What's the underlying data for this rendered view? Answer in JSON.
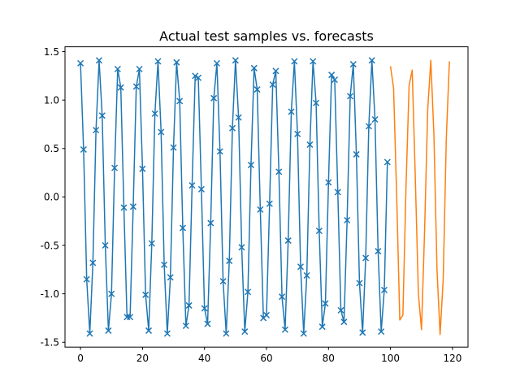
{
  "chart_data": {
    "type": "line",
    "title": "Actual test samples vs. forecasts",
    "xlabel": "",
    "ylabel": "",
    "xlim": [
      -5,
      125
    ],
    "ylim": [
      -1.55,
      1.55
    ],
    "xticks": [
      0,
      20,
      40,
      60,
      80,
      100,
      120
    ],
    "yticks": [
      -1.5,
      -1.0,
      -0.5,
      0.0,
      0.5,
      1.0,
      1.5
    ],
    "ytick_labels": [
      "-1.5",
      "-1.0",
      "-0.5",
      "0.0",
      "0.5",
      "1.0",
      "1.5"
    ],
    "grid": false,
    "legend": "none",
    "series": [
      {
        "color": "#1f77b4",
        "marker": "x",
        "x": [
          0,
          1,
          2,
          3,
          4,
          5,
          6,
          7,
          8,
          9,
          10,
          11,
          12,
          13,
          14,
          15,
          16,
          17,
          18,
          19,
          20,
          21,
          22,
          23,
          24,
          25,
          26,
          27,
          28,
          29,
          30,
          31,
          32,
          33,
          34,
          35,
          36,
          37,
          38,
          39,
          40,
          41,
          42,
          43,
          44,
          45,
          46,
          47,
          48,
          49,
          50,
          51,
          52,
          53,
          54,
          55,
          56,
          57,
          58,
          59,
          60,
          61,
          62,
          63,
          64,
          65,
          66,
          67,
          68,
          69,
          70,
          71,
          72,
          73,
          74,
          75,
          76,
          77,
          78,
          79,
          80,
          81,
          82,
          83,
          84,
          85,
          86,
          87,
          88,
          89,
          90,
          91,
          92,
          93,
          94,
          95,
          96,
          97,
          98,
          99
        ],
        "values": [
          1.38,
          0.49,
          -0.85,
          -1.41,
          -0.68,
          0.69,
          1.41,
          0.84,
          -0.5,
          -1.38,
          -1.0,
          0.3,
          1.32,
          1.13,
          -0.11,
          -1.24,
          -1.24,
          -0.1,
          1.14,
          1.32,
          0.29,
          -1.01,
          -1.38,
          -0.48,
          0.86,
          1.4,
          0.67,
          -0.7,
          -1.41,
          -0.83,
          0.51,
          1.39,
          0.99,
          -0.32,
          -1.33,
          -1.12,
          0.12,
          1.25,
          1.23,
          0.08,
          -1.15,
          -1.31,
          -0.27,
          1.02,
          1.38,
          0.47,
          -0.87,
          -1.41,
          -0.66,
          0.71,
          1.41,
          0.82,
          -0.52,
          -1.39,
          -0.98,
          0.33,
          1.33,
          1.11,
          -0.13,
          -1.25,
          -1.22,
          -0.07,
          1.16,
          1.3,
          0.26,
          -1.03,
          -1.37,
          -0.45,
          0.88,
          1.4,
          0.65,
          -0.72,
          -1.41,
          -0.81,
          0.54,
          1.4,
          0.97,
          -0.35,
          -1.34,
          -1.1,
          0.15,
          1.26,
          1.21,
          0.05,
          -1.17,
          -1.29,
          -0.24,
          1.04,
          1.37,
          0.44,
          -0.89,
          -1.4,
          -0.63,
          0.73,
          1.41,
          0.8,
          -0.56,
          -1.39,
          -0.96,
          0.36
        ]
      },
      {
        "color": "#ff7f0e",
        "marker": "none",
        "x": [
          100,
          101,
          102,
          103,
          104,
          105,
          106,
          107,
          108,
          109,
          110,
          111,
          112,
          113,
          114,
          115,
          116,
          117,
          118,
          119
        ],
        "values": [
          1.35,
          1.12,
          0.0,
          -1.27,
          -1.22,
          0.1,
          1.15,
          1.31,
          0.2,
          -1.0,
          -1.37,
          -0.35,
          0.9,
          1.41,
          0.65,
          -0.75,
          -1.42,
          -0.85,
          0.6,
          1.4
        ]
      }
    ]
  }
}
